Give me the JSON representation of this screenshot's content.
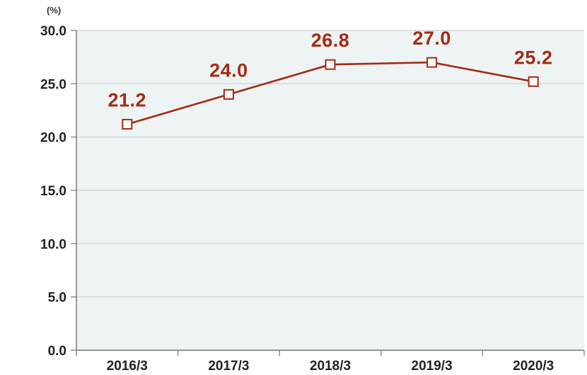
{
  "chart_data": {
    "type": "line",
    "unit_label": "(%)",
    "categories": [
      "2016/3",
      "2017/3",
      "2018/3",
      "2019/3",
      "2020/3"
    ],
    "series": [
      {
        "values": [
          21.2,
          24.0,
          26.8,
          27.0,
          25.2
        ]
      }
    ],
    "data_labels": [
      "21.2",
      "24.0",
      "26.8",
      "27.0",
      "25.2"
    ],
    "y_ticks": [
      "0.0",
      "5.0",
      "10.0",
      "15.0",
      "20.0",
      "25.0",
      "30.0"
    ],
    "ylim": [
      0,
      30
    ],
    "grid": true,
    "colors": {
      "line": "#a52a14",
      "label": "#a52a14",
      "plot_bg": "#eef4f4",
      "grid": "#c9cfd1",
      "axis": "#777777",
      "marker_fill": "#ffffff"
    }
  }
}
